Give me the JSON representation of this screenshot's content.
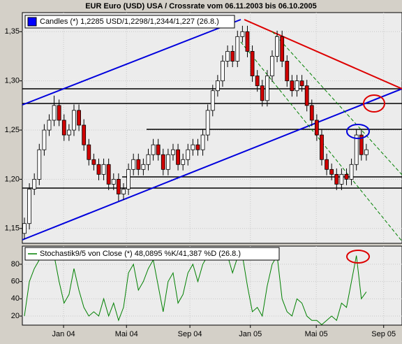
{
  "chart_data": [
    {
      "type": "candlestick",
      "title": "EUR Euro (USD) USA / Crossrate vom 06.11.2003 bis 06.10.2005",
      "series": [
        {
          "name": "Candles (*) 1,2285 USD/1,2298/1,2344/1,227 (26.8.)",
          "color": "#0000ff",
          "up_color": "#ffffff",
          "down_color": "#d00000",
          "open": [
            1.145,
            1.155,
            1.19,
            1.2,
            1.23,
            1.25,
            1.26,
            1.275,
            1.26,
            1.245,
            1.25,
            1.27,
            1.255,
            1.235,
            1.22,
            1.215,
            1.205,
            1.215,
            1.195,
            1.2,
            1.185,
            1.19,
            1.21,
            1.22,
            1.21,
            1.215,
            1.225,
            1.235,
            1.225,
            1.21,
            1.225,
            1.23,
            1.215,
            1.22,
            1.23,
            1.235,
            1.23,
            1.245,
            1.27,
            1.29,
            1.3,
            1.32,
            1.33,
            1.32,
            1.345,
            1.35,
            1.33,
            1.305,
            1.295,
            1.28,
            1.305,
            1.325,
            1.345,
            1.32,
            1.3,
            1.29,
            1.3,
            1.295,
            1.275,
            1.26,
            1.245,
            1.22,
            1.21,
            1.205,
            1.195,
            1.205,
            1.2,
            1.215,
            1.245,
            1.225
          ],
          "high": [
            1.161,
            1.196,
            1.206,
            1.236,
            1.256,
            1.266,
            1.285,
            1.281,
            1.266,
            1.256,
            1.276,
            1.276,
            1.261,
            1.241,
            1.226,
            1.221,
            1.221,
            1.221,
            1.206,
            1.206,
            1.196,
            1.216,
            1.226,
            1.226,
            1.221,
            1.231,
            1.241,
            1.241,
            1.231,
            1.231,
            1.236,
            1.236,
            1.226,
            1.236,
            1.241,
            1.241,
            1.251,
            1.276,
            1.296,
            1.306,
            1.326,
            1.336,
            1.336,
            1.351,
            1.356,
            1.356,
            1.336,
            1.311,
            1.301,
            1.311,
            1.331,
            1.351,
            1.351,
            1.326,
            1.306,
            1.306,
            1.306,
            1.301,
            1.281,
            1.266,
            1.251,
            1.226,
            1.216,
            1.211,
            1.211,
            1.211,
            1.221,
            1.251,
            1.251,
            1.236
          ],
          "low": [
            1.139,
            1.149,
            1.184,
            1.194,
            1.224,
            1.244,
            1.254,
            1.254,
            1.239,
            1.239,
            1.244,
            1.249,
            1.229,
            1.214,
            1.209,
            1.199,
            1.199,
            1.189,
            1.189,
            1.178,
            1.179,
            1.184,
            1.204,
            1.204,
            1.204,
            1.209,
            1.219,
            1.219,
            1.204,
            1.204,
            1.219,
            1.209,
            1.209,
            1.214,
            1.224,
            1.224,
            1.224,
            1.239,
            1.264,
            1.284,
            1.294,
            1.314,
            1.314,
            1.314,
            1.339,
            1.324,
            1.299,
            1.289,
            1.274,
            1.274,
            1.299,
            1.319,
            1.314,
            1.294,
            1.284,
            1.284,
            1.289,
            1.269,
            1.254,
            1.239,
            1.214,
            1.204,
            1.199,
            1.189,
            1.189,
            1.194,
            1.194,
            1.209,
            1.219,
            1.219
          ],
          "close": [
            1.155,
            1.19,
            1.2,
            1.23,
            1.25,
            1.26,
            1.275,
            1.26,
            1.245,
            1.25,
            1.27,
            1.255,
            1.235,
            1.22,
            1.215,
            1.205,
            1.215,
            1.195,
            1.2,
            1.185,
            1.19,
            1.21,
            1.22,
            1.21,
            1.215,
            1.225,
            1.235,
            1.225,
            1.21,
            1.225,
            1.23,
            1.215,
            1.22,
            1.23,
            1.235,
            1.23,
            1.245,
            1.27,
            1.29,
            1.3,
            1.32,
            1.33,
            1.32,
            1.345,
            1.35,
            1.33,
            1.305,
            1.295,
            1.28,
            1.305,
            1.325,
            1.345,
            1.32,
            1.3,
            1.29,
            1.3,
            1.295,
            1.275,
            1.26,
            1.245,
            1.22,
            1.21,
            1.205,
            1.195,
            1.205,
            1.2,
            1.215,
            1.245,
            1.225,
            1.23
          ]
        }
      ],
      "xlim": [
        -0.42,
        76.2
      ],
      "ylim": [
        1.1349,
        1.3694
      ],
      "yticks": [
        {
          "value": 1.15,
          "label": "1,15"
        },
        {
          "value": 1.2,
          "label": "1,20"
        },
        {
          "value": 1.25,
          "label": "1,25"
        },
        {
          "value": 1.3,
          "label": "1,30"
        },
        {
          "value": 1.35,
          "label": "1,35"
        }
      ],
      "grid": true
    },
    {
      "type": "line",
      "series": [
        {
          "name": "Stochastik9/5 von Close (*) 48,0895 %K/41,387 %D (26.8.)",
          "color": "#008000",
          "values": [
            20,
            60,
            75,
            85,
            88,
            85,
            90,
            60,
            35,
            45,
            75,
            50,
            30,
            20,
            25,
            20,
            40,
            20,
            35,
            15,
            30,
            70,
            80,
            50,
            60,
            75,
            85,
            55,
            25,
            60,
            70,
            35,
            45,
            70,
            80,
            60,
            80,
            90,
            92,
            90,
            88,
            90,
            70,
            88,
            90,
            55,
            25,
            30,
            20,
            55,
            80,
            90,
            40,
            25,
            20,
            40,
            35,
            20,
            15,
            15,
            10,
            15,
            20,
            15,
            35,
            30,
            60,
            90,
            40,
            48
          ]
        }
      ],
      "xlim": [
        -0.42,
        76.2
      ],
      "ylim": [
        9.5,
        101
      ],
      "yticks": [
        20,
        40,
        60,
        80
      ],
      "xticks": [
        {
          "value": 7.9,
          "label": "Jan 04"
        },
        {
          "value": 20.6,
          "label": "Mai 04"
        },
        {
          "value": 33.4,
          "label": "Sep 04"
        },
        {
          "value": 45.6,
          "label": "Jan 05"
        },
        {
          "value": 58.9,
          "label": "Mai 05"
        },
        {
          "value": 72.5,
          "label": "Sep 05"
        }
      ],
      "grid": true
    }
  ]
}
